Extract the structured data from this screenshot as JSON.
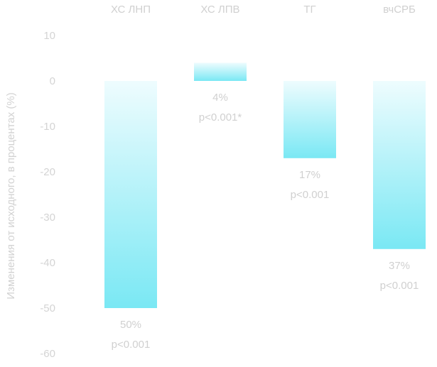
{
  "chart_data": {
    "type": "bar",
    "title": "",
    "xlabel": "",
    "ylabel": "Изменения от исходного, в процентах (%)",
    "categories": [
      "ХС ЛНП",
      "ХС ЛПВ",
      "ТГ",
      "вчСРБ"
    ],
    "values": [
      -50,
      4,
      -17,
      -37
    ],
    "value_labels": [
      "50%",
      "4%",
      "17%",
      "37%"
    ],
    "p_labels": [
      "p<0.001",
      "p<0.001*",
      "p<0.001",
      "p<0.001"
    ],
    "yticks": [
      "10",
      "0",
      "-10",
      "-20",
      "-30",
      "-40",
      "-50",
      "-60"
    ],
    "ylim": [
      -60,
      10
    ],
    "grid": false,
    "legend": "none",
    "bar_color_top": "#eefcfe",
    "bar_color_bottom": "#7ae8f4"
  }
}
